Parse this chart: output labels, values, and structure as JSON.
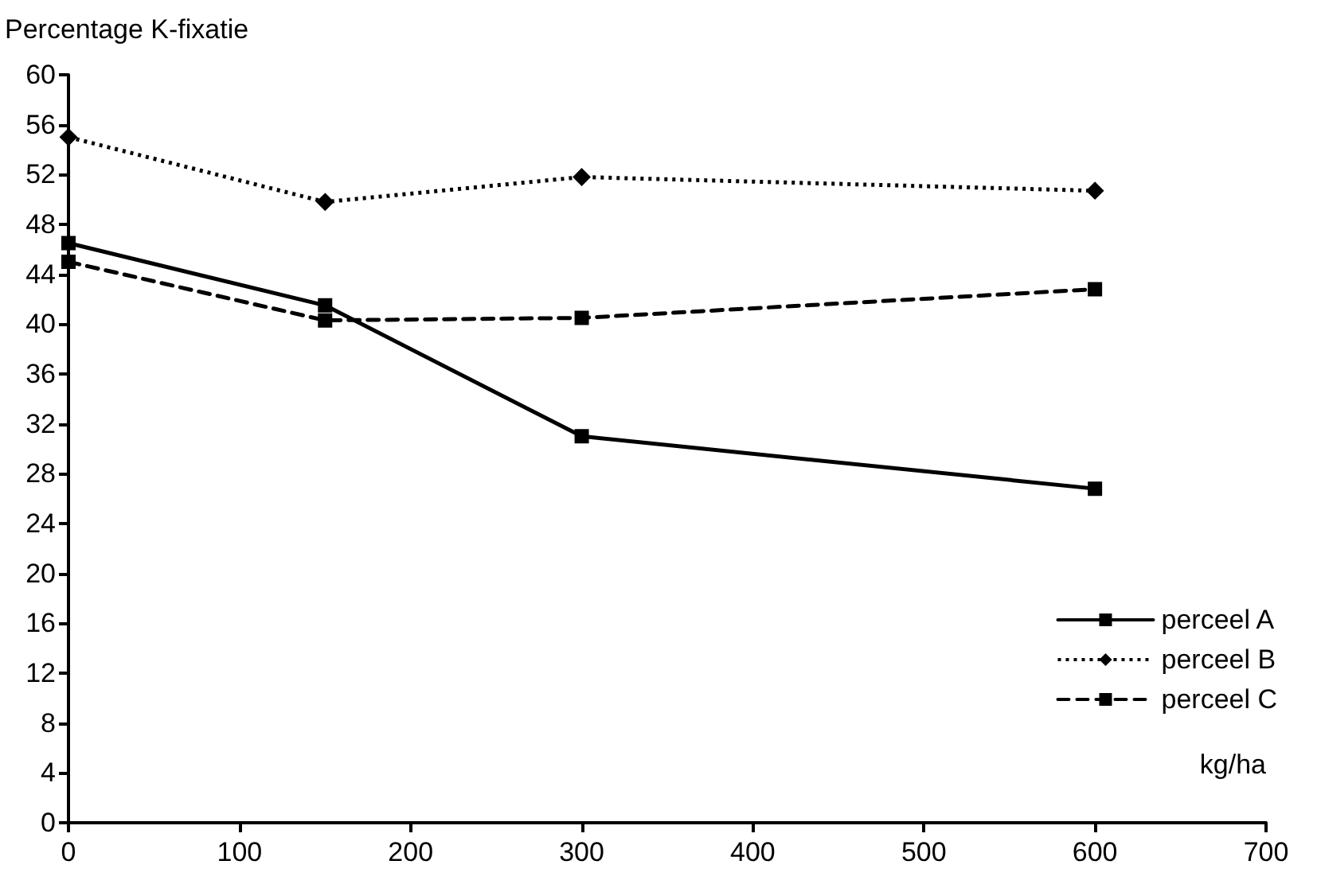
{
  "chart_data": {
    "type": "line",
    "ylabel": "Percentage K-fixatie",
    "xlabel": "kg/ha",
    "x": [
      0,
      150,
      300,
      600
    ],
    "series": [
      {
        "name": "perceel A",
        "color": "#000000",
        "values": [
          46.5,
          41.5,
          31,
          26.8
        ],
        "marker": "square",
        "line_style": "solid"
      },
      {
        "name": "perceel B",
        "color": "#000000",
        "values": [
          55,
          49.8,
          51.8,
          50.7
        ],
        "marker": "diamond",
        "line_style": "dotted"
      },
      {
        "name": "perceel C",
        "color": "#000000",
        "values": [
          45,
          40.3,
          40.5,
          42.8
        ],
        "marker": "square",
        "line_style": "dashed"
      }
    ],
    "xlim": [
      0,
      700
    ],
    "xticks": [
      0,
      100,
      200,
      300,
      400,
      500,
      600,
      700
    ],
    "ylim": [
      0,
      60
    ],
    "yticks": [
      0,
      4,
      8,
      12,
      16,
      20,
      24,
      28,
      32,
      36,
      40,
      44,
      48,
      52,
      56,
      60
    ],
    "grid": false,
    "legend": "bottom right"
  }
}
